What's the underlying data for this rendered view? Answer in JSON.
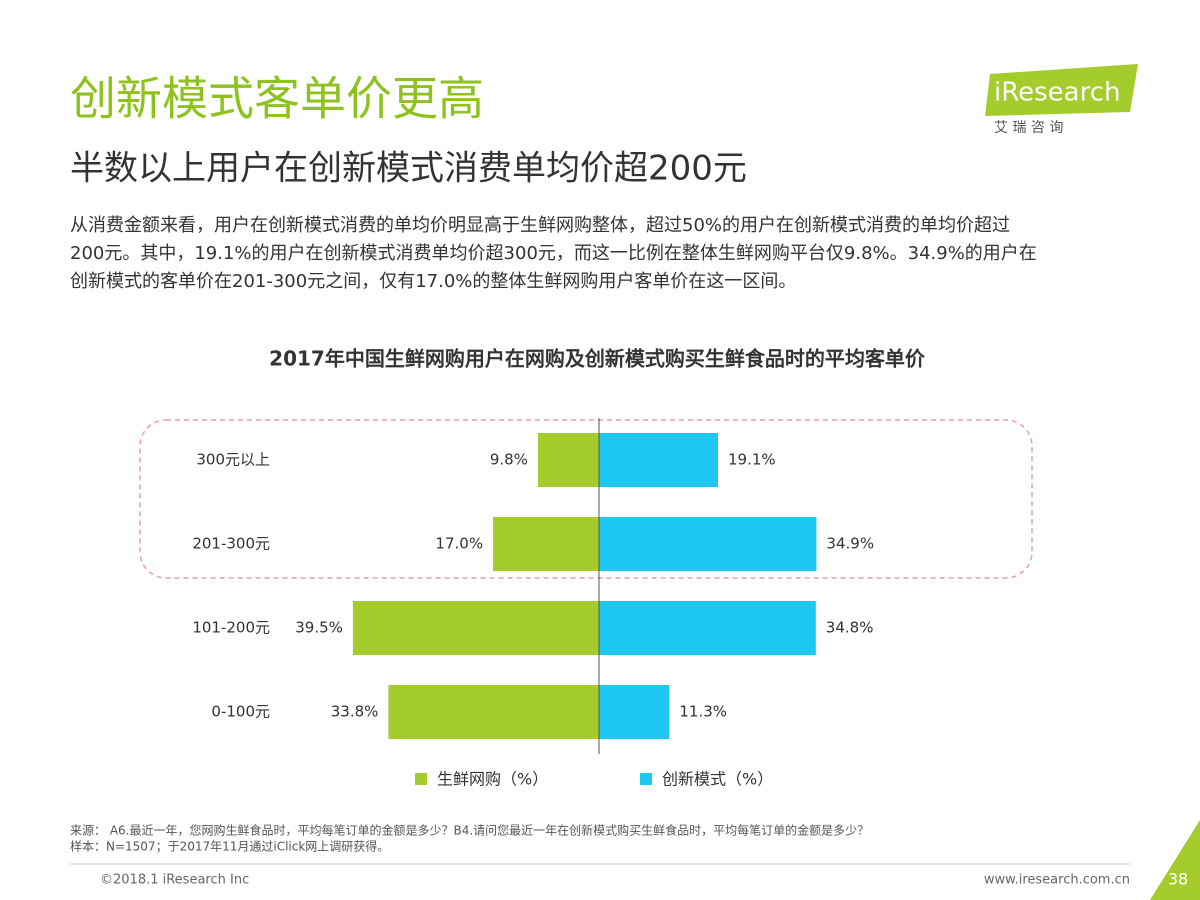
{
  "header": {
    "title": "创新模式客单价更高",
    "subtitle": "半数以上用户在创新模式消费单均价超200元",
    "logo": "iResearch",
    "logo_sub": "艾 瑞 咨 询",
    "body": [
      "从消费金额来看，用户在创新模式消费的单均价明显高于生鲜网购整体，超过50%的用户在创新模式消费的单均价超过",
      "200元。其中，19.1%的用户在创新模式消费单均价超300元，而这一比例在整体生鲜网购平台仅9.8%。34.9%的用户在",
      "创新模式的客单价在201-300元之间，仅有17.0%的整体生鲜网购用户客单价在这一区间。"
    ]
  },
  "chart_data": {
    "type": "butterfly",
    "title": "2017年中国生鲜网购用户在网购及创新模式购买生鲜食品时的平均客单价",
    "categories": [
      "300元以上",
      "201-300元",
      "101-200元",
      "0-100元"
    ],
    "series": [
      {
        "name": "生鲜网购（%）",
        "color": "#a5cc2d",
        "values": [
          9.8,
          17.0,
          39.5,
          33.8
        ],
        "value_labels": [
          "9.8%",
          "17.0%",
          "39.5%",
          "33.8%"
        ]
      },
      {
        "name": "创新模式（%）",
        "color": "#1fc8f0",
        "values": [
          19.1,
          34.9,
          34.8,
          11.3
        ],
        "value_labels": [
          "19.1%",
          "34.9%",
          "34.8%",
          "11.3%"
        ]
      }
    ]
  },
  "footer": {
    "source": "来源：   A6.最近一年，您网购生鲜食品时，平均每笔订单的金额是多少？B4.请问您最近一年在创新模式购买生鲜食品时，平均每笔订单的金额是多少？",
    "sample": "样本：N=1507；于2017年11月通过iClick网上调研获得。",
    "copyright": "©2018.1 iResearch Inc",
    "website": "www.iresearch.com.cn",
    "page": "38"
  }
}
